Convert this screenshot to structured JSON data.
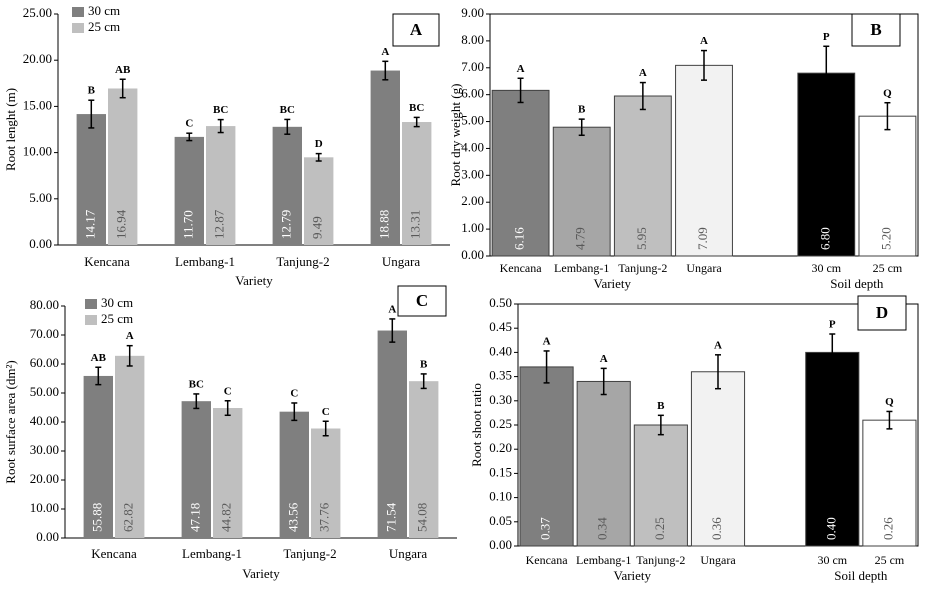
{
  "chart_data": [
    {
      "type": "bar",
      "panel_label": "A",
      "ylabel": "Root lenght (m)",
      "xlabel": "Variety",
      "categories": [
        "Kencana",
        "Lembang-1",
        "Tanjung-2",
        "Ungara"
      ],
      "series": [
        {
          "name": "30 cm",
          "color": "#7f7f7f",
          "values": [
            14.17,
            11.7,
            12.79,
            18.88
          ],
          "value_labels": [
            "14.17",
            "11.70",
            "12.79",
            "18.88"
          ],
          "errors": [
            1.5,
            0.4,
            0.8,
            1.0
          ],
          "significance": [
            "B",
            "C",
            "BC",
            "A"
          ]
        },
        {
          "name": "25 cm",
          "color": "#bfbfbf",
          "values": [
            16.94,
            12.87,
            9.49,
            13.31
          ],
          "value_labels": [
            "16.94",
            "12.87",
            "9.49",
            "13.31"
          ],
          "errors": [
            1.0,
            0.7,
            0.4,
            0.5
          ],
          "significance": [
            "AB",
            "BC",
            "D",
            "BC"
          ]
        }
      ],
      "ylim": [
        0,
        25
      ],
      "yticks": [
        {
          "value": 0,
          "label": "0.00"
        },
        {
          "value": 5,
          "label": "5.00"
        },
        {
          "value": 10,
          "label": "10.00"
        },
        {
          "value": 15,
          "label": "15.00"
        },
        {
          "value": 20,
          "label": "20.00"
        },
        {
          "value": 25,
          "label": "25.00"
        }
      ]
    },
    {
      "type": "bar",
      "panel_label": "B",
      "ylabel": "Root dry weight (g)",
      "xlabels": [
        "Variety",
        "Soil depth"
      ],
      "categories": [
        "Kencana",
        "Lembang-1",
        "Tanjung-2",
        "Ungara",
        null,
        "30 cm",
        "25 cm"
      ],
      "values": [
        6.16,
        4.79,
        5.95,
        7.09,
        null,
        6.8,
        5.2
      ],
      "value_labels": [
        "6.16",
        "4.79",
        "5.95",
        "7.09",
        null,
        "6.80",
        "5.20"
      ],
      "colors": [
        "#7f7f7f",
        "#a6a6a6",
        "#bfbfbf",
        "#f2f2f2",
        null,
        "#000000",
        "#ffffff"
      ],
      "errors": [
        0.45,
        0.3,
        0.5,
        0.55,
        null,
        1.0,
        0.5
      ],
      "significance": [
        "A",
        "B",
        "A",
        "A",
        null,
        "P",
        "Q"
      ],
      "ylim": [
        0,
        9
      ],
      "yticks": [
        {
          "value": 0,
          "label": "0.00"
        },
        {
          "value": 1,
          "label": "1.00"
        },
        {
          "value": 2,
          "label": "2.00"
        },
        {
          "value": 3,
          "label": "3.00"
        },
        {
          "value": 4,
          "label": "4.00"
        },
        {
          "value": 5,
          "label": "5.00"
        },
        {
          "value": 6,
          "label": "6.00"
        },
        {
          "value": 7,
          "label": "7.00"
        },
        {
          "value": 8,
          "label": "8.00"
        },
        {
          "value": 9,
          "label": "9.00"
        }
      ]
    },
    {
      "type": "bar",
      "panel_label": "C",
      "ylabel": "Root surface area (dm²)",
      "xlabel": "Variety",
      "categories": [
        "Kencana",
        "Lembang-1",
        "Tanjung-2",
        "Ungara"
      ],
      "series": [
        {
          "name": "30 cm",
          "color": "#7f7f7f",
          "values": [
            55.88,
            47.18,
            43.56,
            71.54
          ],
          "value_labels": [
            "55.88",
            "47.18",
            "43.56",
            "71.54"
          ],
          "errors": [
            3,
            2.5,
            3,
            4
          ],
          "significance": [
            "AB",
            "BC",
            "C",
            "A"
          ]
        },
        {
          "name": "25 cm",
          "color": "#bfbfbf",
          "values": [
            62.82,
            44.82,
            37.76,
            54.08
          ],
          "value_labels": [
            "62.82",
            "44.82",
            "37.76",
            "54.08"
          ],
          "errors": [
            3.5,
            2.5,
            2.5,
            2.5
          ],
          "significance": [
            "A",
            "C",
            "C",
            "B"
          ]
        }
      ],
      "ylim": [
        0,
        80
      ],
      "yticks": [
        {
          "value": 0,
          "label": "0.00"
        },
        {
          "value": 10,
          "label": "10.00"
        },
        {
          "value": 20,
          "label": "20.00"
        },
        {
          "value": 30,
          "label": "30.00"
        },
        {
          "value": 40,
          "label": "40.00"
        },
        {
          "value": 50,
          "label": "50.00"
        },
        {
          "value": 60,
          "label": "60.00"
        },
        {
          "value": 70,
          "label": "70.00"
        },
        {
          "value": 80,
          "label": "80.00"
        }
      ]
    },
    {
      "type": "bar",
      "panel_label": "D",
      "ylabel": "Root shoot ratio",
      "xlabels": [
        "Variety",
        "Soil depth"
      ],
      "categories": [
        "Kencana",
        "Lembang-1",
        "Tanjung-2",
        "Ungara",
        null,
        "30 cm",
        "25 cm"
      ],
      "values": [
        0.37,
        0.34,
        0.25,
        0.36,
        null,
        0.4,
        0.26
      ],
      "value_labels": [
        "0.37",
        "0.34",
        "0.25",
        "0.36",
        null,
        "0.40",
        "0.26"
      ],
      "colors": [
        "#7f7f7f",
        "#a6a6a6",
        "#bfbfbf",
        "#f2f2f2",
        null,
        "#000000",
        "#ffffff"
      ],
      "errors": [
        0.033,
        0.027,
        0.02,
        0.035,
        null,
        0.038,
        0.018
      ],
      "significance": [
        "A",
        "A",
        "B",
        "A",
        null,
        "P",
        "Q"
      ],
      "ylim": [
        0,
        0.5
      ],
      "yticks": [
        {
          "value": 0,
          "label": "0.00"
        },
        {
          "value": 0.05,
          "label": "0.05"
        },
        {
          "value": 0.1,
          "label": "0.10"
        },
        {
          "value": 0.15,
          "label": "0.15"
        },
        {
          "value": 0.2,
          "label": "0.20"
        },
        {
          "value": 0.25,
          "label": "0.25"
        },
        {
          "value": 0.3,
          "label": "0.30"
        },
        {
          "value": 0.35,
          "label": "0.35"
        },
        {
          "value": 0.4,
          "label": "0.40"
        },
        {
          "value": 0.45,
          "label": "0.45"
        },
        {
          "value": 0.5,
          "label": "0.50"
        }
      ]
    }
  ]
}
